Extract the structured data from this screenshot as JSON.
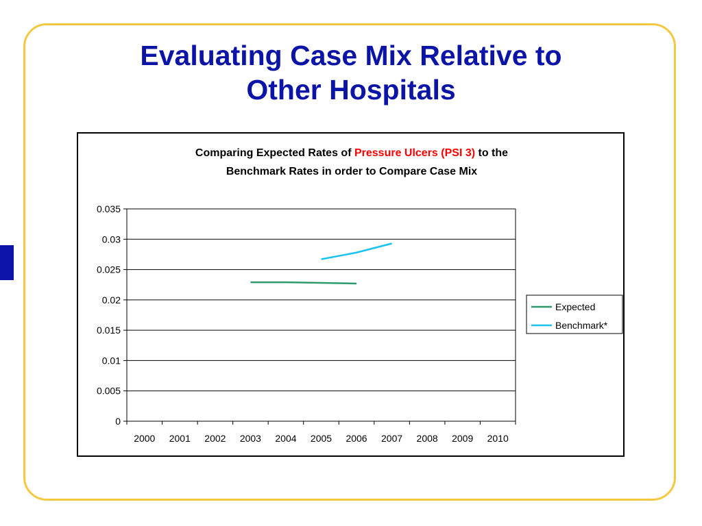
{
  "slide": {
    "title_line1": "Evaluating Case Mix Relative to",
    "title_line2": "Other Hospitals"
  },
  "colors": {
    "title": "#0b14a6",
    "frame": "#f5c842",
    "highlight": "#ff0000",
    "expected": "#2e9a6b",
    "benchmark": "#19c3ee"
  },
  "chart_data": {
    "type": "line",
    "title_line1_pre": "Comparing Expected Rates of ",
    "title_line1_highlight": "Pressure Ulcers (PSI 3)",
    "title_line1_post": " to the",
    "title_line2": "Benchmark Rates in order to Compare Case Mix",
    "categories": [
      "2000",
      "2001",
      "2002",
      "2003",
      "2004",
      "2005",
      "2006",
      "2007",
      "2008",
      "2009",
      "2010"
    ],
    "y_ticks": [
      "0",
      "0.005",
      "0.01",
      "0.015",
      "0.02",
      "0.025",
      "0.03",
      "0.035"
    ],
    "ylim": [
      0,
      0.035
    ],
    "grid": true,
    "legend_position": "right",
    "series": [
      {
        "name": "Expected",
        "color": "#2e9a6b",
        "points": [
          [
            "2003",
            0.0229
          ],
          [
            "2004",
            0.0229
          ],
          [
            "2005",
            0.0228
          ],
          [
            "2006",
            0.0227
          ]
        ]
      },
      {
        "name": "Benchmark*",
        "color": "#19c3ee",
        "points": [
          [
            "2005",
            0.0267
          ],
          [
            "2006",
            0.0278
          ],
          [
            "2007",
            0.0293
          ]
        ]
      }
    ]
  }
}
